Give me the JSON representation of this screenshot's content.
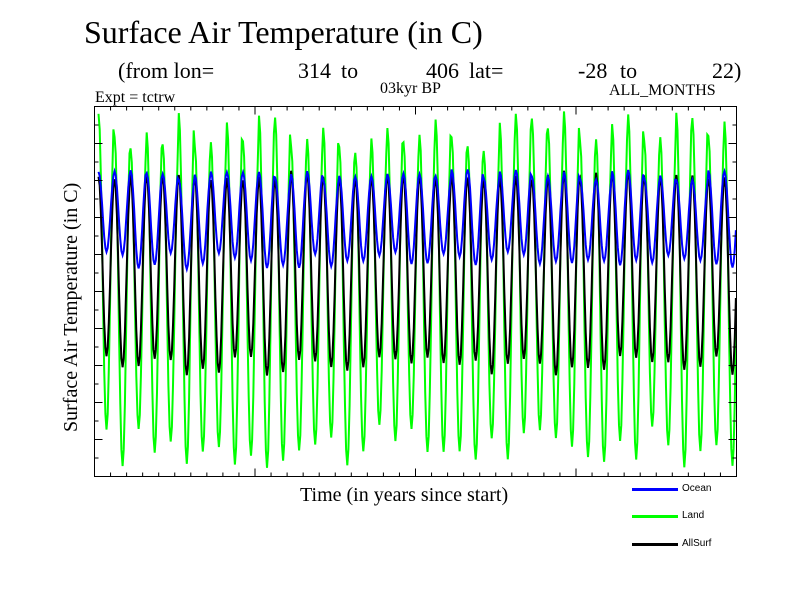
{
  "chart_data": {
    "type": "line",
    "title": "Surface Air Temperature (in C)",
    "subtitle": {
      "prefix": "(from lon=",
      "lon_from": "314",
      "to1": "to",
      "lon_to": "406",
      "lat_label": "lat=",
      "lat_from": "-28",
      "to2": "to",
      "lat_to": "22)"
    },
    "experiment": "Expt = tctrw",
    "period": "03kyr BP",
    "months": "ALL_MONTHS",
    "xlabel": "Time (in years since start)",
    "ylabel": "Surface Air Temperature (in C)",
    "n_cycles": 40,
    "ylim": [
      0,
      100
    ],
    "series": [
      {
        "name": "Land",
        "color": "#00ff00",
        "min": 2.5,
        "max": 97.5,
        "min_range": [
          2,
          14
        ],
        "max_range": [
          87,
          99
        ]
      },
      {
        "name": "AllSurf",
        "color": "#000000",
        "min": 29,
        "max": 82,
        "min_range": [
          27,
          33
        ],
        "max_range": [
          80,
          83
        ]
      },
      {
        "name": "Ocean",
        "color": "#0000ff",
        "min": 57,
        "max": 82,
        "min_range": [
          56,
          61
        ],
        "max_range": [
          80,
          83
        ]
      }
    ],
    "legend": [
      {
        "label": "Ocean",
        "color": "#0000ff"
      },
      {
        "label": "Land",
        "color": "#00ff00"
      },
      {
        "label": "AllSurf",
        "color": "#000000"
      }
    ]
  }
}
